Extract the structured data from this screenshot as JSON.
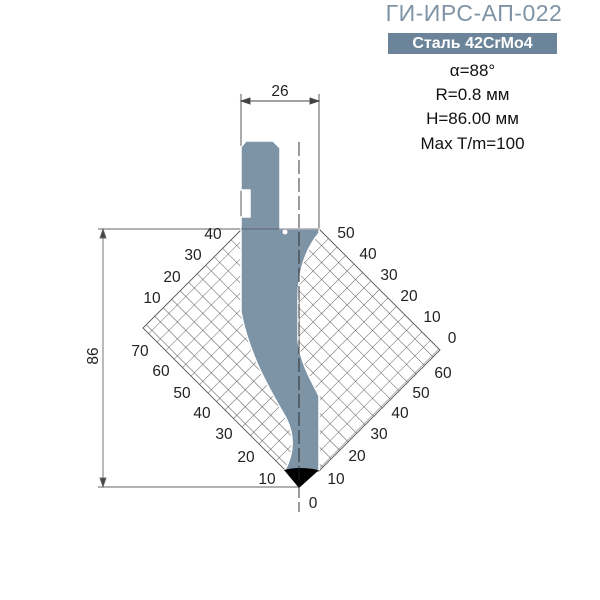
{
  "header": {
    "code": "ГИ-ИРС-АП-022",
    "material": "Сталь 42CrMo4"
  },
  "specs": {
    "angle": "α=88°",
    "radius": "R=0.8 мм",
    "height": "H=86.00 мм",
    "max_load": "Max T/m=100"
  },
  "dimensions": {
    "width": "26",
    "height": "86"
  },
  "scales": {
    "left_upper": [
      "40",
      "30",
      "20",
      "10"
    ],
    "left_lower": [
      "70",
      "60",
      "50",
      "40",
      "30",
      "20",
      "10"
    ],
    "right_upper": [
      "50",
      "40",
      "30",
      "20",
      "10",
      "0"
    ],
    "right_lower": [
      "60",
      "50",
      "40",
      "30",
      "20",
      "10"
    ],
    "origin": "0"
  },
  "colors": {
    "punch": "#7d93a6",
    "badge": "#6b8499",
    "title": "#7f93a6",
    "tip": "#000000"
  }
}
